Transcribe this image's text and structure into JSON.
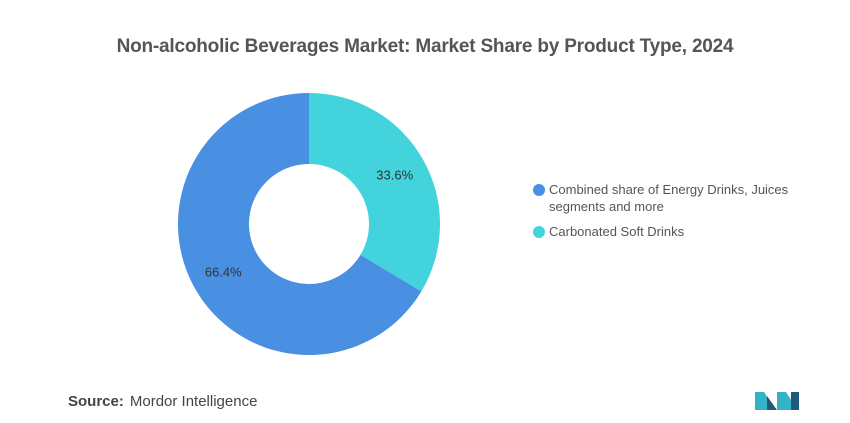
{
  "chart_data": {
    "type": "pie",
    "donut": true,
    "title": "Non-alcoholic Beverages Market: Market Share by Product Type, 2024",
    "slices": [
      {
        "label": "Carbonated Soft Drinks",
        "value": 33.6,
        "display": "33.6%",
        "color": "#42D3DC"
      },
      {
        "label": "Combined share of Energy Drinks, Juices segments and more",
        "value": 66.4,
        "display": "66.4%",
        "color": "#4A90E2"
      }
    ],
    "legend": {
      "placement": "right",
      "entries": [
        {
          "label": "Combined share of Energy Drinks, Juices segments and more",
          "color": "#4A90E2"
        },
        {
          "label": "Carbonated Soft Drinks",
          "color": "#42D3DC"
        }
      ]
    }
  },
  "footer": {
    "source_label": "Source:",
    "source_value": "Mordor Intelligence"
  },
  "logo": {
    "icon": "mordor-intelligence-logo",
    "color_dark": "#1F5A7A",
    "color_light": "#34B3C6"
  }
}
